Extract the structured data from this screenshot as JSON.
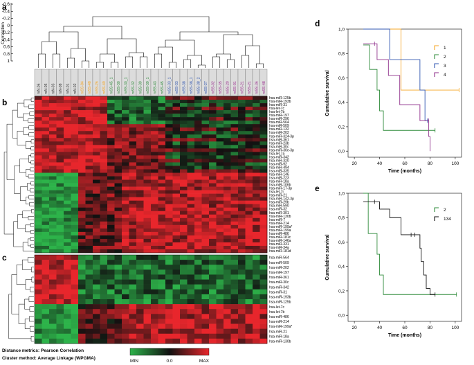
{
  "panels": {
    "a": "a",
    "b": "b",
    "c": "c",
    "d": "d",
    "e": "e"
  },
  "correlation_axis": {
    "label": "Correlation",
    "ticks": [
      "-0.6",
      "-0.4",
      "-0.2",
      "0",
      "0.2",
      "0.4",
      "0.6",
      "0.8",
      "1"
    ]
  },
  "samples": [
    {
      "name": "mN-06",
      "color": "#333333"
    },
    {
      "name": "mN-05",
      "color": "#333333"
    },
    {
      "name": "mN-03",
      "color": "#333333"
    },
    {
      "name": "mN-08",
      "color": "#333333"
    },
    {
      "name": "mN-01",
      "color": "#333333"
    },
    {
      "name": "mN-02",
      "color": "#333333"
    },
    {
      "name": "mSS-84",
      "color": "#f5a623"
    },
    {
      "name": "mSS-48",
      "color": "#f5a623"
    },
    {
      "name": "mSS-26",
      "color": "#f5a623"
    },
    {
      "name": "mSS-49",
      "color": "#f5a623"
    },
    {
      "name": "mSS-45_1",
      "color": "#2e8b3a"
    },
    {
      "name": "mSS-30",
      "color": "#2e8b3a"
    },
    {
      "name": "mSS-30_1",
      "color": "#2e8b3a"
    },
    {
      "name": "mSS-32",
      "color": "#2e8b3a"
    },
    {
      "name": "mSS-39",
      "color": "#2e8b3a"
    },
    {
      "name": "mSS-39_1",
      "color": "#2e8b3a"
    },
    {
      "name": "mSS-43",
      "color": "#2e8b3a"
    },
    {
      "name": "mSS-45",
      "color": "#2e8b3a"
    },
    {
      "name": "mSS-33_1",
      "color": "#2f55b0"
    },
    {
      "name": "mSS-33",
      "color": "#2f55b0"
    },
    {
      "name": "mSS-38",
      "color": "#2f55b0"
    },
    {
      "name": "mSS-38_1",
      "color": "#2f55b0"
    },
    {
      "name": "mSS-38_2",
      "color": "#2f55b0"
    },
    {
      "name": "mSS-27",
      "color": "#2f55b0"
    },
    {
      "name": "mSS-02",
      "color": "#9b2d8f"
    },
    {
      "name": "mSS-35",
      "color": "#9b2d8f"
    },
    {
      "name": "mSS-20",
      "color": "#9b2d8f"
    },
    {
      "name": "mSS-01",
      "color": "#9b2d8f"
    },
    {
      "name": "mSS-21",
      "color": "#9b2d8f"
    },
    {
      "name": "mSS-21",
      "color": "#9b2d8f"
    },
    {
      "name": "mSS-36",
      "color": "#9b2d8f"
    },
    {
      "name": "mSS-48",
      "color": "#9b2d8f"
    }
  ],
  "heatmap_b_genes": [
    "hsa-miR-125b",
    "hsa-miR-193b",
    "hsa-miR-31",
    "hsa-let-7c",
    "hsa-let-7b",
    "hsa-miR-197",
    "hsa-miR-296",
    "hsa-miR-564",
    "hsa-miR-509",
    "hsa-miR-132",
    "hsa-miR-202",
    "hsa-miR-324-3p",
    "hsa-miR-361",
    "hsa-miR-23b",
    "hsa-miR-30c",
    "hsa-miR-30e-3p",
    "hsa-let-7a",
    "hsa-miR-342",
    "hsa-miR-320",
    "hsa-miR-92",
    "hsa-miR-494",
    "hsa-miR-335",
    "hsa-miR-146",
    "hsa-miR-223",
    "hsa-miR-18a",
    "hsa-miR-106b",
    "hsa-miR-17-3p",
    "hsa-let-7i",
    "hsa-miR-21",
    "hsa-miR-142-3p",
    "hsa-miR-29b",
    "hsa-miR-590",
    "hsa-miR-32",
    "hsa-miR-301",
    "hsa-miR-130b",
    "hsa-miR-7",
    "hsa-miR-214",
    "hsa-miR-199a*",
    "hsa-miR-199a",
    "hsa-miR-486",
    "hsa-miR-181c",
    "hsa-miR-146a",
    "hsa-miR-331",
    "hsa-miR-34a",
    "hsa-miR-181d"
  ],
  "heatmap_c_genes": [
    "hsa-miR-564",
    "hsa-miR-509",
    "hsa-miR-202",
    "hsa-miR-197",
    "hsa-miR-361",
    "hsa-miR-30c",
    "hsa-miR-342",
    "hsa-miR-31",
    "hsa-miR-193b",
    "hsa-miR-125b",
    "hsa-let-7c",
    "hsa-let-7b",
    "hsa-miR-486",
    "hsa-miR-214",
    "hsa-miR-199a*",
    "hsa-miR-21",
    "hsa-miR-18a",
    "hsa-miR-130b"
  ],
  "footer": {
    "line1": "Distance metrics: Pearson Correlation",
    "line2": "Cluster method: Average Linkage (WPGMA)"
  },
  "color_scale": {
    "min": "MIN",
    "mid": "0.0",
    "max": "MAX",
    "low_color": "#2db34a",
    "mid_color": "#111111",
    "high_color": "#e8262c"
  },
  "chart_data": [
    {
      "panel": "d",
      "type": "line",
      "title": "",
      "xlabel": "Time (months)",
      "ylabel": "Cumulative survival",
      "xlim": [
        15,
        105
      ],
      "ylim": [
        -0.05,
        1.0
      ],
      "xticks": [
        20,
        40,
        60,
        80,
        100
      ],
      "yticks": [
        "0,0",
        "0,2",
        "0,4",
        "0,6",
        "0,8",
        "1,0"
      ],
      "series": [
        {
          "name": "1",
          "color": "#f5a623",
          "x": [
            27,
            57,
            57,
            103
          ],
          "y": [
            1.0,
            1.0,
            0.5,
            0.5
          ]
        },
        {
          "name": "2",
          "color": "#2e8b3a",
          "x": [
            27,
            32,
            32,
            38,
            38,
            40,
            40,
            43,
            43,
            84
          ],
          "y": [
            0.87,
            0.87,
            0.67,
            0.67,
            0.5,
            0.5,
            0.33,
            0.33,
            0.17,
            0.17
          ]
        },
        {
          "name": "3",
          "color": "#2f55b0",
          "x": [
            27,
            48,
            48,
            72,
            72,
            76,
            76,
            78
          ],
          "y": [
            1.0,
            1.0,
            0.75,
            0.75,
            0.5,
            0.5,
            0.25,
            0.25
          ]
        },
        {
          "name": "4",
          "color": "#8e2e8a",
          "x": [
            27,
            38,
            38,
            47,
            47,
            56,
            56,
            72,
            72,
            79,
            79,
            80,
            80
          ],
          "y": [
            0.88,
            0.88,
            0.75,
            0.75,
            0.62,
            0.62,
            0.38,
            0.38,
            0.25,
            0.25,
            0.12,
            0.12,
            0.0
          ]
        }
      ],
      "censor_marks": [
        {
          "series": "1",
          "x": 103,
          "y": 0.5
        },
        {
          "series": "2",
          "x": 84,
          "y": 0.17
        },
        {
          "series": "3",
          "x": 78,
          "y": 0.25
        },
        {
          "series": "4",
          "x": 36,
          "y": 0.88
        },
        {
          "series": "4",
          "x": 79,
          "y": 0.25
        }
      ]
    },
    {
      "panel": "e",
      "type": "line",
      "title": "",
      "xlabel": "Time (months)",
      "ylabel": "Cumulative survival",
      "xlim": [
        15,
        105
      ],
      "ylim": [
        -0.05,
        1.0
      ],
      "xticks": [
        20,
        40,
        60,
        80,
        100
      ],
      "yticks": [
        "0,0",
        "0,2",
        "0,4",
        "0,6",
        "0,8",
        "1,0"
      ],
      "series": [
        {
          "name": "2",
          "color": "#2e8b3a",
          "x": [
            27,
            31,
            31,
            38,
            38,
            40,
            40,
            43,
            43,
            101
          ],
          "y": [
            1.0,
            1.0,
            0.67,
            0.67,
            0.5,
            0.5,
            0.33,
            0.33,
            0.17,
            0.17
          ]
        },
        {
          "name": "134",
          "color": "#111111",
          "x": [
            27,
            40,
            40,
            48,
            48,
            57,
            57,
            72,
            72,
            73,
            73,
            75,
            75,
            77,
            77,
            80,
            80,
            84
          ],
          "y": [
            0.93,
            0.93,
            0.87,
            0.87,
            0.8,
            0.8,
            0.66,
            0.66,
            0.55,
            0.55,
            0.44,
            0.44,
            0.33,
            0.33,
            0.22,
            0.22,
            0.17,
            0.17
          ]
        }
      ],
      "censor_marks": [
        {
          "series": "2",
          "x": 101,
          "y": 0.17
        },
        {
          "series": "134",
          "x": 36,
          "y": 0.93
        },
        {
          "series": "134",
          "x": 65,
          "y": 0.66
        },
        {
          "series": "134",
          "x": 68,
          "y": 0.66
        },
        {
          "series": "134",
          "x": 84,
          "y": 0.17
        }
      ]
    }
  ]
}
